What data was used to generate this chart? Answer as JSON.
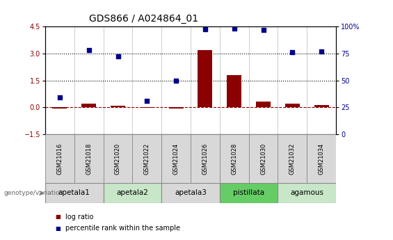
{
  "title": "GDS866 / A024864_01",
  "samples": [
    "GSM21016",
    "GSM21018",
    "GSM21020",
    "GSM21022",
    "GSM21024",
    "GSM21026",
    "GSM21028",
    "GSM21030",
    "GSM21032",
    "GSM21034"
  ],
  "log_ratio": [
    -0.08,
    0.22,
    0.1,
    -0.02,
    -0.05,
    3.2,
    1.8,
    0.32,
    0.22,
    0.13
  ],
  "percentile_rank": [
    0.55,
    3.2,
    2.85,
    0.35,
    1.48,
    4.35,
    4.4,
    4.3,
    3.05,
    3.1
  ],
  "bar_color": "#8B0000",
  "dot_color": "#00008B",
  "ylim_left": [
    -1.5,
    4.5
  ],
  "ylim_right": [
    0,
    100
  ],
  "yticks_left": [
    -1.5,
    0.0,
    1.5,
    3.0,
    4.5
  ],
  "yticks_right": [
    0,
    25,
    50,
    75,
    100
  ],
  "hlines": [
    0.0,
    1.5,
    3.0
  ],
  "hline_styles": [
    "dashed",
    "dotted",
    "dotted"
  ],
  "hline_colors": [
    "#8B0000",
    "black",
    "black"
  ],
  "groups": [
    {
      "label": "apetala1",
      "start": 0,
      "end": 2,
      "color": "#d8d8d8"
    },
    {
      "label": "apetala2",
      "start": 2,
      "end": 4,
      "color": "#c8e6c8"
    },
    {
      "label": "apetala3",
      "start": 4,
      "end": 6,
      "color": "#d8d8d8"
    },
    {
      "label": "pistillata",
      "start": 6,
      "end": 8,
      "color": "#66cc66"
    },
    {
      "label": "agamous",
      "start": 8,
      "end": 10,
      "color": "#c8e6c8"
    }
  ],
  "sample_bg_color": "#d8d8d8",
  "genotype_label": "genotype/variation",
  "legend_bar_label": "log ratio",
  "legend_dot_label": "percentile rank within the sample",
  "title_fontsize": 10,
  "tick_fontsize": 7,
  "sample_fontsize": 6,
  "group_fontsize": 7.5,
  "legend_fontsize": 7
}
